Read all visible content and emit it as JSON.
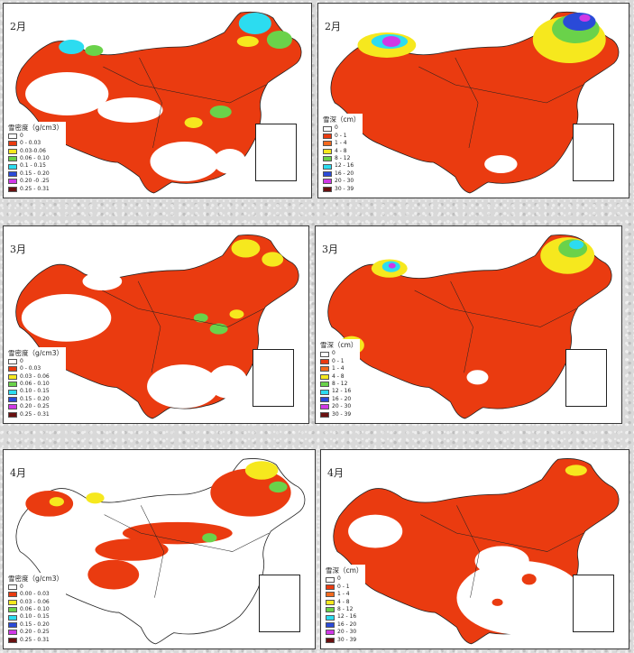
{
  "palette": {
    "none": "#ffffff",
    "base": "#ea3b10",
    "orange": "#f46a1e",
    "yellow": "#f6e81e",
    "green": "#6ad24a",
    "cyan": "#2cdcf0",
    "blue": "#2a4ad8",
    "purple": "#d038e6",
    "maroon": "#6a1010"
  },
  "density_legend_title": "雪密度（g/cm3）",
  "depth_legend_title": "雪深（cm）",
  "panels": [
    {
      "id": "p1",
      "month": "2月",
      "variable": "snow-density",
      "legend_title": "雪密度（g/cm3）",
      "legend": [
        {
          "label": "0",
          "color": "#ffffff"
        },
        {
          "label": "0 - 0.03",
          "color": "#ea3b10"
        },
        {
          "label": "0.03-0.06",
          "color": "#f6e81e"
        },
        {
          "label": "0.06 - 0.10",
          "color": "#6ad24a"
        },
        {
          "label": "0.1 - 0.15",
          "color": "#2cdcf0"
        },
        {
          "label": "0.15 - 0.20",
          "color": "#2a4ad8"
        },
        {
          "label": "0.20 -0 .25",
          "color": "#d038e6"
        },
        {
          "label": "0.25 - 0.31",
          "color": "#6a1010"
        }
      ]
    },
    {
      "id": "p2",
      "month": "2月",
      "variable": "snow-depth",
      "legend_title": "雪深（cm）",
      "legend": [
        {
          "label": "0",
          "color": "#ffffff"
        },
        {
          "label": "0 - 1",
          "color": "#ea3b10"
        },
        {
          "label": "1 - 4",
          "color": "#f46a1e"
        },
        {
          "label": "4 - 8",
          "color": "#f6e81e"
        },
        {
          "label": "8 - 12",
          "color": "#6ad24a"
        },
        {
          "label": "12 - 16",
          "color": "#2cdcf0"
        },
        {
          "label": "16 - 20",
          "color": "#2a4ad8"
        },
        {
          "label": "20 - 30",
          "color": "#d038e6"
        },
        {
          "label": "30 - 39",
          "color": "#6a1010"
        }
      ]
    },
    {
      "id": "p3",
      "month": "3月",
      "variable": "snow-density",
      "legend_title": "雪密度（g/cm3）",
      "legend": [
        {
          "label": "0",
          "color": "#ffffff"
        },
        {
          "label": "0 - 0.03",
          "color": "#ea3b10"
        },
        {
          "label": "0.03 - 0.06",
          "color": "#f6e81e"
        },
        {
          "label": "0.06 - 0.10",
          "color": "#6ad24a"
        },
        {
          "label": "0.10 - 0.15",
          "color": "#2cdcf0"
        },
        {
          "label": "0.15 - 0.20",
          "color": "#2a4ad8"
        },
        {
          "label": "0.20 - 0.25",
          "color": "#d038e6"
        },
        {
          "label": "0.25 - 0.31",
          "color": "#6a1010"
        }
      ]
    },
    {
      "id": "p4",
      "month": "3月",
      "variable": "snow-depth",
      "legend_title": "雪深（cm）",
      "legend": [
        {
          "label": "0",
          "color": "#ffffff"
        },
        {
          "label": "0 - 1",
          "color": "#ea3b10"
        },
        {
          "label": "1 - 4",
          "color": "#f46a1e"
        },
        {
          "label": "4 - 8",
          "color": "#f6e81e"
        },
        {
          "label": "8 - 12",
          "color": "#6ad24a"
        },
        {
          "label": "12 - 16",
          "color": "#2cdcf0"
        },
        {
          "label": "16 - 20",
          "color": "#2a4ad8"
        },
        {
          "label": "20 - 30",
          "color": "#d038e6"
        },
        {
          "label": "30 - 39",
          "color": "#6a1010"
        }
      ]
    },
    {
      "id": "p5",
      "month": "4月",
      "variable": "snow-density",
      "legend_title": "雪密度（g/cm3）",
      "legend": [
        {
          "label": "0",
          "color": "#ffffff"
        },
        {
          "label": "0.00 - 0.03",
          "color": "#ea3b10"
        },
        {
          "label": "0.03 - 0.06",
          "color": "#f6e81e"
        },
        {
          "label": "0.06 - 0.10",
          "color": "#6ad24a"
        },
        {
          "label": "0.10 - 0.15",
          "color": "#2cdcf0"
        },
        {
          "label": "0.15 - 0.20",
          "color": "#2a4ad8"
        },
        {
          "label": "0.20 - 0.25",
          "color": "#d038e6"
        },
        {
          "label": "0.25 - 0.31",
          "color": "#6a1010"
        }
      ]
    },
    {
      "id": "p6",
      "month": "4月",
      "variable": "snow-depth",
      "legend_title": "雪深（cm）",
      "legend": [
        {
          "label": "0",
          "color": "#ffffff"
        },
        {
          "label": "0 - 1",
          "color": "#ea3b10"
        },
        {
          "label": "1 - 4",
          "color": "#f46a1e"
        },
        {
          "label": "4 - 8",
          "color": "#f6e81e"
        },
        {
          "label": "8 - 12",
          "color": "#6ad24a"
        },
        {
          "label": "12 - 16",
          "color": "#2cdcf0"
        },
        {
          "label": "16 - 20",
          "color": "#2a4ad8"
        },
        {
          "label": "20 - 30",
          "color": "#d038e6"
        },
        {
          "label": "30 - 39",
          "color": "#6a1010"
        }
      ]
    }
  ]
}
